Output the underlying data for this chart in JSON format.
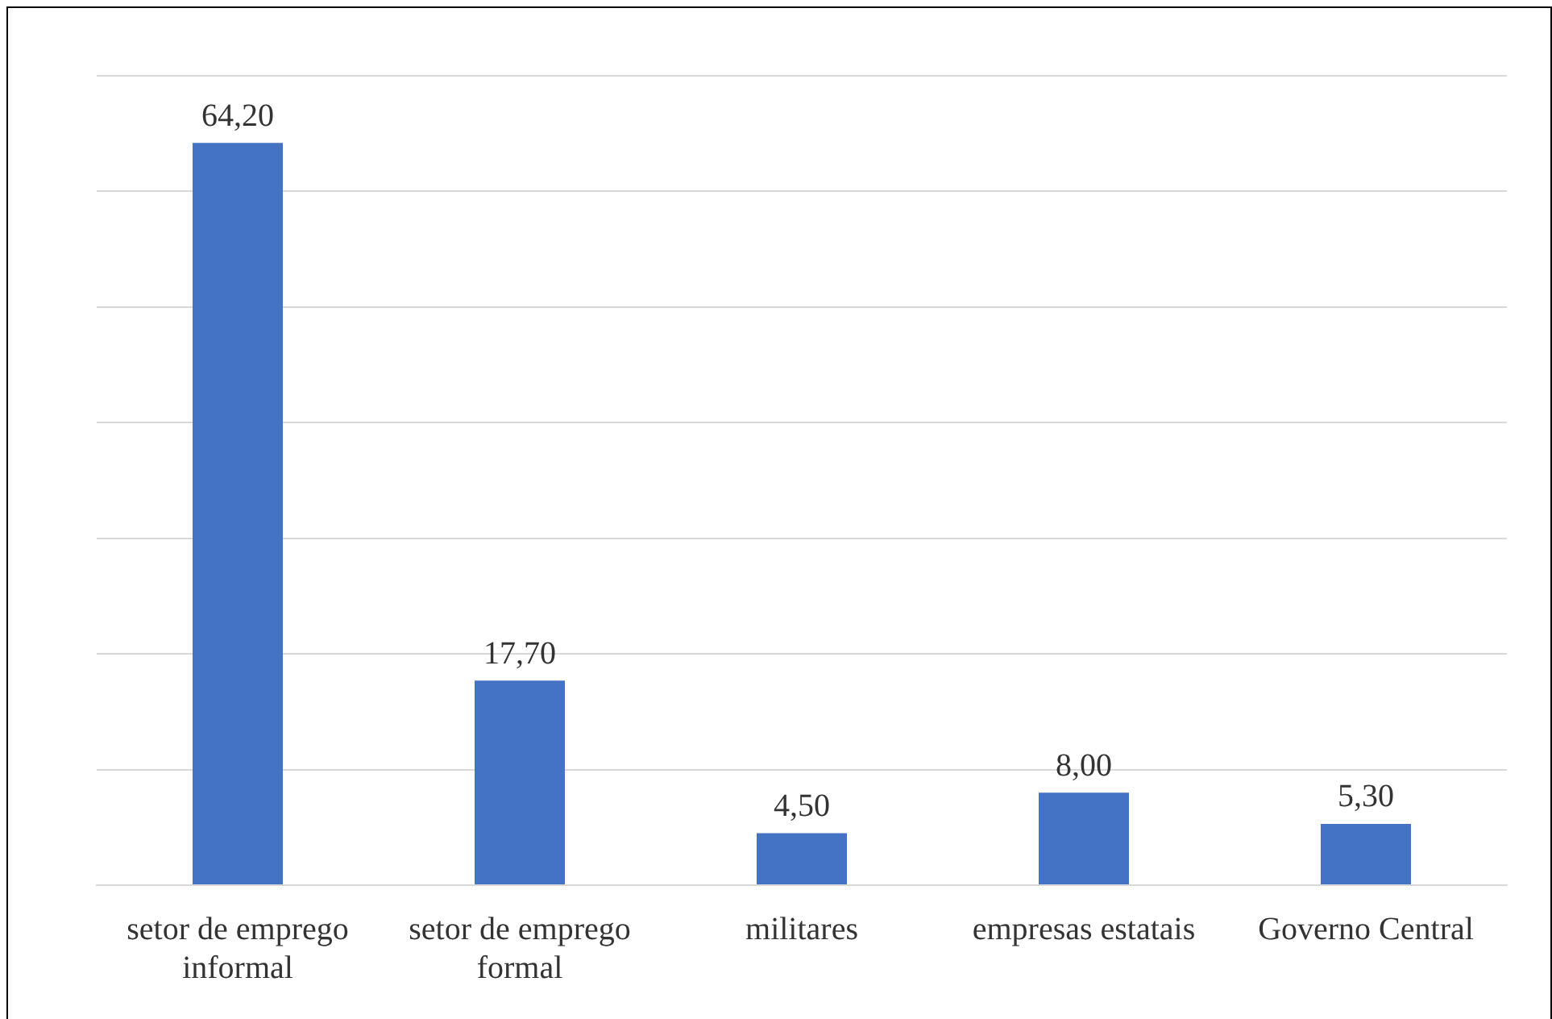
{
  "chart_data": {
    "type": "bar",
    "categories": [
      "setor de emprego informal",
      "setor de emprego formal",
      "militares",
      "empresas estatais",
      "Governo Central"
    ],
    "values": [
      64.2,
      17.7,
      4.5,
      8.0,
      5.3
    ],
    "value_labels": [
      "64,20",
      "17,70",
      "4,50",
      "8,00",
      "5,30"
    ],
    "color": "#4472c4",
    "ylim": [
      0,
      70
    ],
    "yticks": [
      {
        "value": 0,
        "label": null
      },
      {
        "value": 10,
        "label": null
      },
      {
        "value": 20,
        "label": null
      },
      {
        "value": 30,
        "label": null
      },
      {
        "value": 40,
        "label": null
      },
      {
        "value": 50,
        "label": null
      },
      {
        "value": 60,
        "label": null
      },
      {
        "value": 70,
        "label": null
      }
    ],
    "grid": "y",
    "tick_labels": "x"
  }
}
